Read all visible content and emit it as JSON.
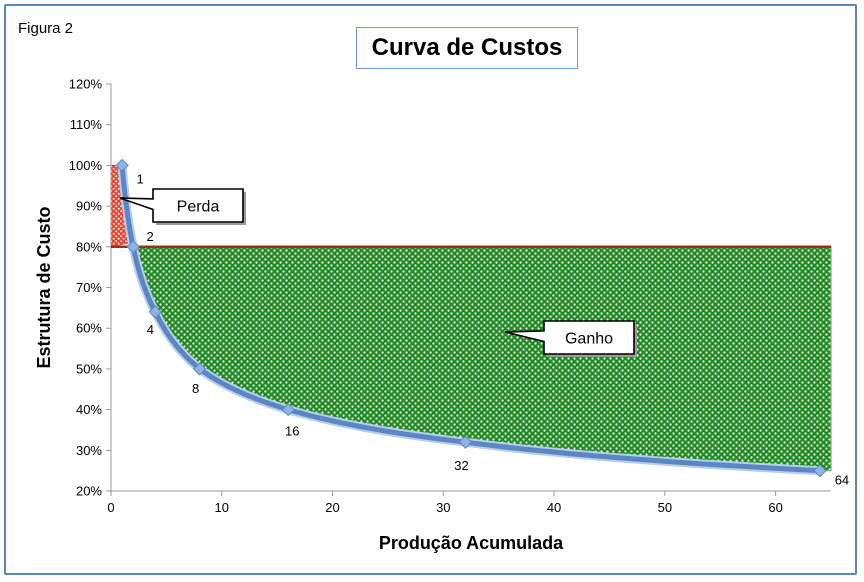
{
  "figure_label": "Figura 2",
  "chart_data": {
    "type": "line",
    "title": "Curva de Custos",
    "xlabel": "Produção Acumulada",
    "ylabel": "Estrutura de Custo",
    "xlim": [
      0,
      65
    ],
    "ylim": [
      20,
      120
    ],
    "x_ticks": [
      0,
      10,
      20,
      30,
      40,
      50,
      60
    ],
    "y_ticks": [
      "20%",
      "30%",
      "40%",
      "50%",
      "60%",
      "70%",
      "80%",
      "90%",
      "100%",
      "110%",
      "120%"
    ],
    "y_tick_values": [
      20,
      30,
      40,
      50,
      60,
      70,
      80,
      90,
      100,
      110,
      120
    ],
    "grid": false,
    "series": [
      {
        "x": [
          1,
          2,
          4,
          8,
          16,
          32,
          64
        ],
        "y": [
          100,
          80,
          64,
          50,
          40,
          32,
          25
        ],
        "point_labels": [
          "1",
          "2",
          "4",
          "8",
          "16",
          "32",
          "64"
        ],
        "color": "#5b86c6"
      }
    ],
    "reference_line": {
      "y": 80,
      "color": "#a52a1a"
    },
    "regions": [
      {
        "label": "Perda",
        "fill": "#e8432d",
        "pattern": "white dots"
      },
      {
        "label": "Ganho",
        "fill": "#1e8c1e",
        "pattern": "white dots"
      }
    ],
    "annotations": [
      {
        "text": "Perda"
      },
      {
        "text": "Ganho"
      }
    ]
  }
}
